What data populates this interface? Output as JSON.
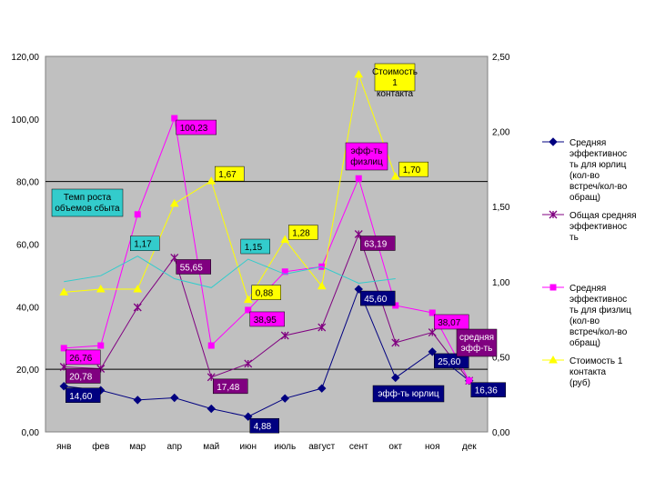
{
  "chart_data": {
    "type": "line",
    "categories": [
      "янв",
      "фев",
      "мар",
      "апр",
      "май",
      "июн",
      "июль",
      "август",
      "сент",
      "окт",
      "ноя",
      "дек"
    ],
    "left_axis": {
      "ticks": [
        "0,00",
        "20,00",
        "40,00",
        "60,00",
        "80,00",
        "100,00",
        "120,00"
      ],
      "ylim": [
        0,
        120
      ]
    },
    "right_axis": {
      "ticks": [
        "0,00",
        "0,50",
        "1,00",
        "1,50",
        "2,00",
        "2,50"
      ],
      "ylim": [
        0,
        2.5
      ]
    },
    "grid": "horizontal major lines at 20, 80 on left axis",
    "series": [
      {
        "name": "Средняя эффективность для юрлиц (кол-во встреч/кол-во обращ)",
        "axis": "left",
        "color": "#000080",
        "marker": "diamond",
        "values": [
          14.6,
          13.3,
          10.2,
          10.9,
          7.4,
          4.88,
          10.7,
          13.9,
          45.6,
          17.3,
          25.6,
          16.36
        ],
        "labels": [
          {
            "i": 0,
            "text": "14,60"
          },
          {
            "i": 5,
            "text": "4,88"
          },
          {
            "i": 8,
            "text": "45,60"
          },
          {
            "i": 10,
            "text": "25,60"
          },
          {
            "i": 11,
            "text": "16,36"
          }
        ]
      },
      {
        "name": "Общая средняя эффективность",
        "axis": "left",
        "color": "#800080",
        "marker": "star",
        "values": [
          20.78,
          20.2,
          39.8,
          55.65,
          17.48,
          21.8,
          30.8,
          33.4,
          63.19,
          28.5,
          31.8,
          16.36
        ],
        "labels": [
          {
            "i": 0,
            "text": "20,78"
          },
          {
            "i": 3,
            "text": "55,65"
          },
          {
            "i": 4,
            "text": "17,48"
          },
          {
            "i": 8,
            "text": "63,19"
          }
        ]
      },
      {
        "name": "Средняя эффективность для физлиц (кол-во встреч/кол-во обращ)",
        "axis": "left",
        "color": "#ff00ff",
        "marker": "square",
        "values": [
          26.76,
          27.6,
          69.5,
          100.23,
          27.6,
          38.95,
          51.2,
          52.8,
          81.0,
          40.4,
          38.07,
          16.36
        ],
        "labels": [
          {
            "i": 0,
            "text": "26,76"
          },
          {
            "i": 3,
            "text": "100,23"
          },
          {
            "i": 5,
            "text": "38,95"
          },
          {
            "i": 10,
            "text": "38,07"
          }
        ]
      },
      {
        "name": "Стоимость 1 контакта (руб)",
        "axis": "right",
        "color": "#ffff00",
        "marker": "triangle",
        "values": [
          0.93,
          0.95,
          0.95,
          1.52,
          1.67,
          0.88,
          1.28,
          0.97,
          2.38,
          1.7,
          null,
          null
        ],
        "labels": [
          {
            "i": 4,
            "text": "1,67"
          },
          {
            "i": 5,
            "text": "0,88"
          },
          {
            "i": 6,
            "text": "1,28"
          },
          {
            "i": 9,
            "text": "1,70"
          }
        ]
      },
      {
        "name": "Темп роста объемов сбыта",
        "axis": "right",
        "color": "#33cccc",
        "marker": "none",
        "values": [
          1.0,
          1.04,
          1.17,
          1.02,
          0.96,
          1.15,
          1.05,
          1.1,
          0.99,
          1.02,
          null,
          null
        ],
        "labels": [
          {
            "i": 2,
            "text": "1,17"
          },
          {
            "i": 5,
            "text": "1,15"
          }
        ]
      }
    ],
    "callouts": [
      {
        "text": "Стоимость 1 контакта",
        "bg": "#ffff00"
      },
      {
        "text": "эфф-ть физлиц",
        "bg": "#ff00ff"
      },
      {
        "text": "Темп роста объемов сбыта",
        "bg": "#33cccc"
      },
      {
        "text": "средняя эфф-ть",
        "bg": "#800080"
      },
      {
        "text": "эфф-ть юрлиц",
        "bg": "#000080"
      }
    ],
    "legend": {
      "placement": "right",
      "entries": [
        {
          "series": 0,
          "text": "Средняя эффективнос ть для юрлиц (кол-во встреч/кол-во обращ)"
        },
        {
          "series": 1,
          "text": "Общая средняя эффективнос ть"
        },
        {
          "series": 2,
          "text": "Средняя эффективнос ть для физлиц (кол-во встреч/кол-во обращ)"
        },
        {
          "series": 3,
          "text": "Стоимость 1 контакта (руб)"
        }
      ]
    }
  }
}
